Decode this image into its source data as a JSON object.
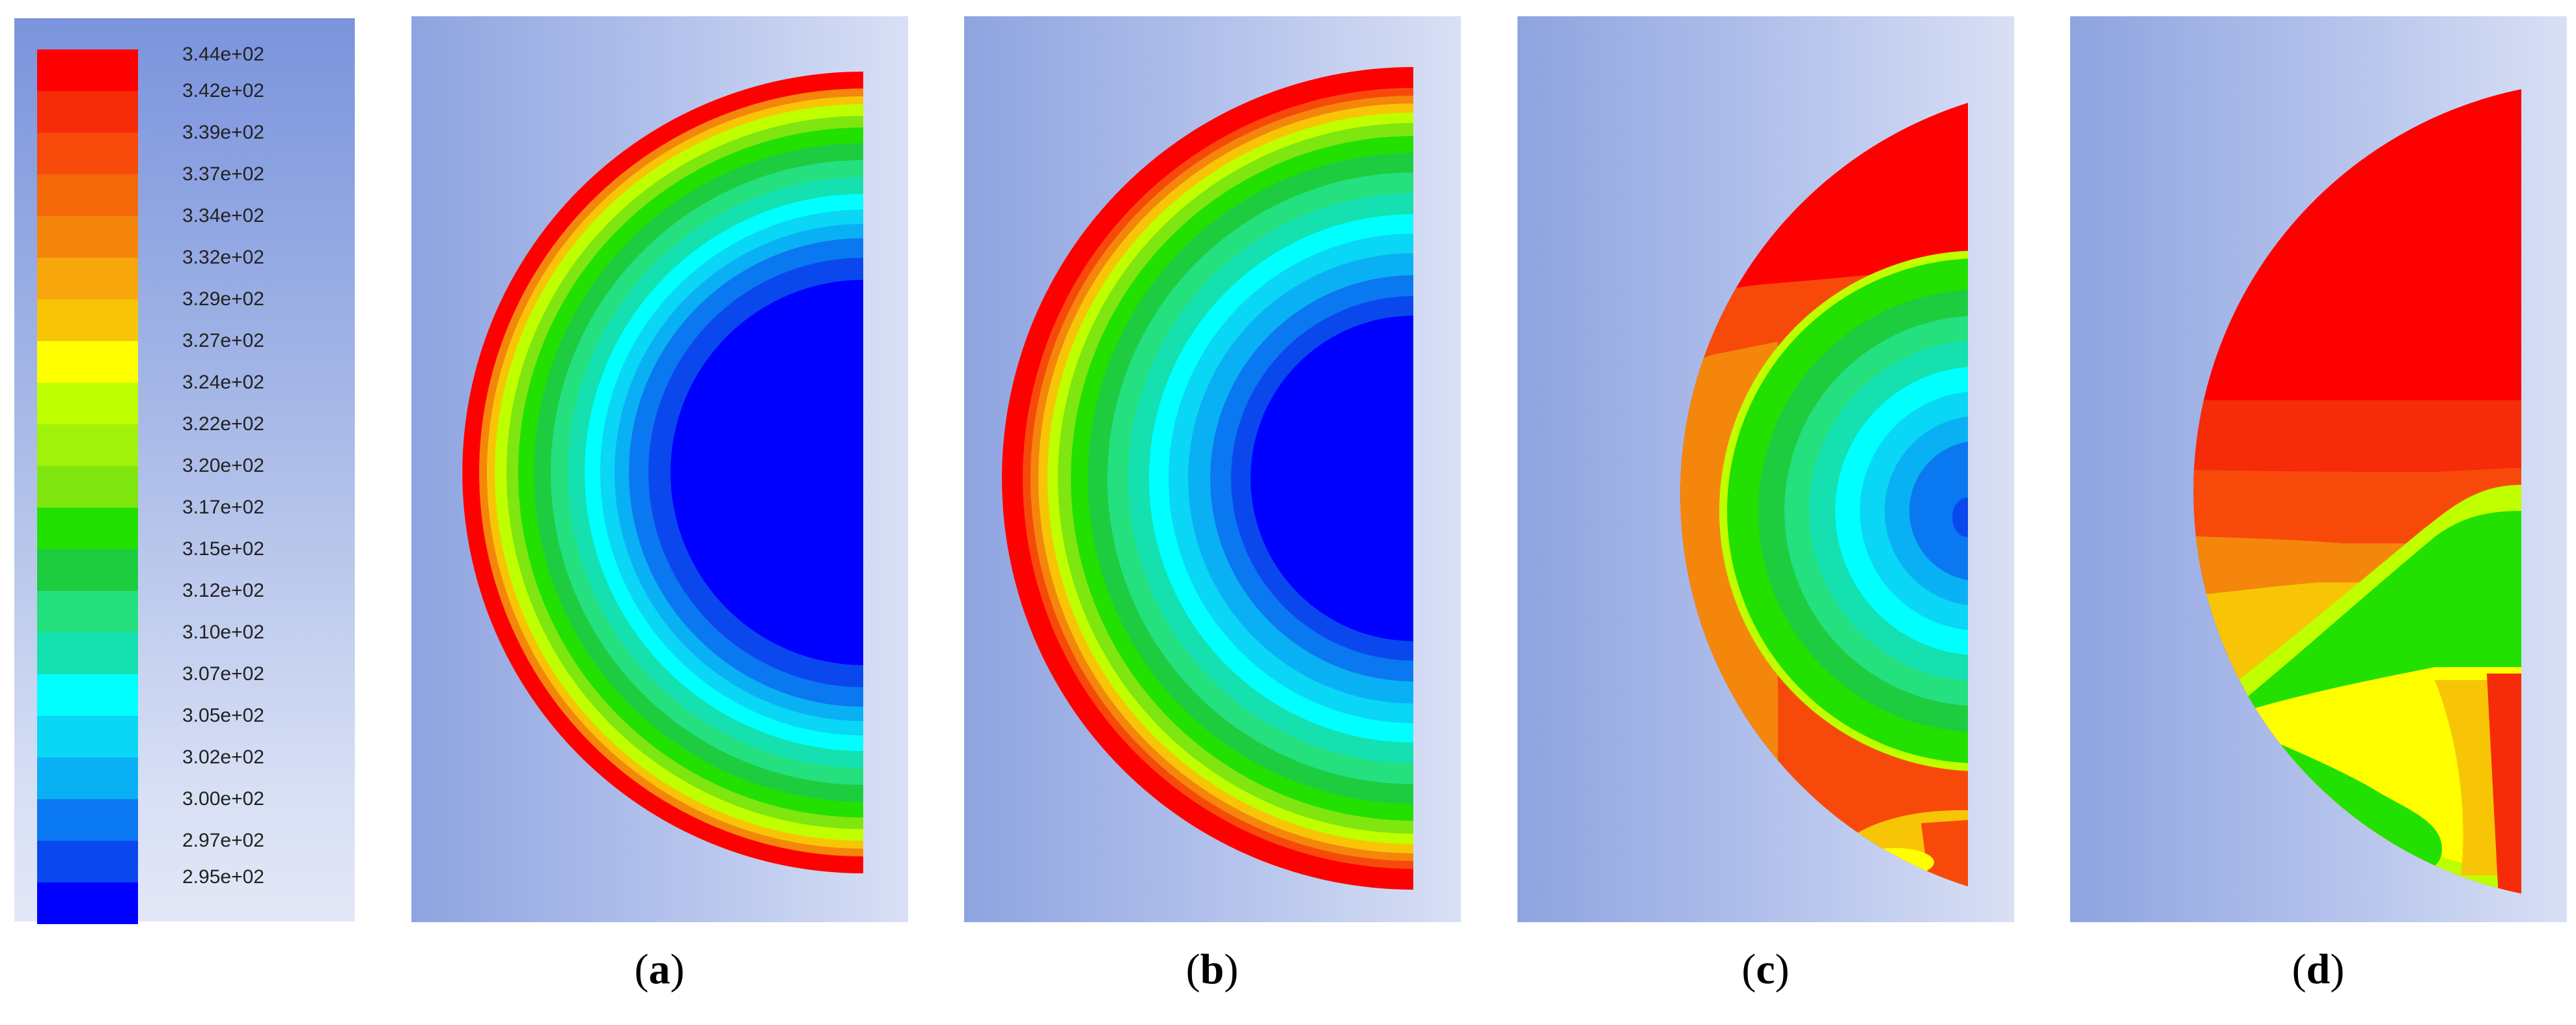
{
  "legend": {
    "labels": [
      "3.44e+02",
      "3.42e+02",
      "3.39e+02",
      "3.37e+02",
      "3.34e+02",
      "3.32e+02",
      "3.29e+02",
      "3.27e+02",
      "3.24e+02",
      "3.22e+02",
      "3.20e+02",
      "3.17e+02",
      "3.15e+02",
      "3.12e+02",
      "3.10e+02",
      "3.07e+02",
      "3.05e+02",
      "3.02e+02",
      "3.00e+02",
      "2.97e+02",
      "2.95e+02"
    ],
    "colors": [
      "#ff0000",
      "#f62b08",
      "#f74a0a",
      "#f3690a",
      "#f5860c",
      "#f7a60b",
      "#f8c506",
      "#ffff00",
      "#bfff00",
      "#a0f20b",
      "#7fe60f",
      "#22e000",
      "#1ecc40",
      "#24e07e",
      "#14e0b0",
      "#00ffff",
      "#0ad6f6",
      "#0ab0f4",
      "#0a78f0",
      "#0a48ee",
      "#0000ff"
    ]
  },
  "panels": [
    {
      "id": "a",
      "open": "(",
      "letter": "a",
      "close": ")",
      "state": "uniform"
    },
    {
      "id": "b",
      "open": "(",
      "letter": "b",
      "close": ")",
      "state": "uniform-warmer"
    },
    {
      "id": "c",
      "open": "(",
      "letter": "c",
      "close": ")",
      "state": "stratifying"
    },
    {
      "id": "d",
      "open": "(",
      "letter": "d",
      "close": ")",
      "state": "stratified"
    }
  ]
}
